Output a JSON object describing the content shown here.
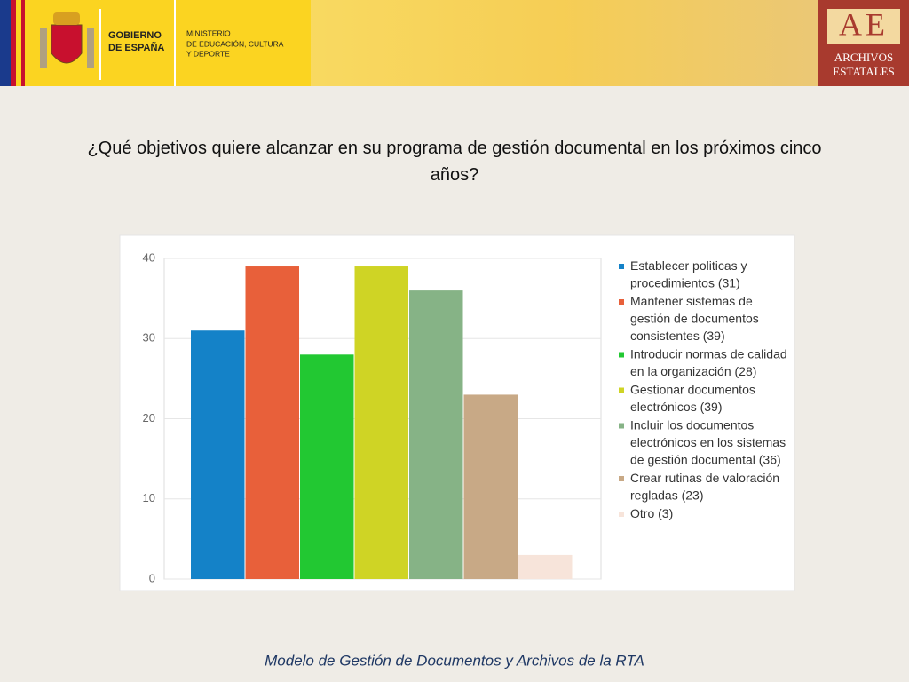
{
  "header": {
    "gobierno": "GOBIERNO",
    "espana": "DE ESPAÑA",
    "ministerio": "MINISTERIO",
    "ministerio2": "DE EDUCACIÓN, CULTURA",
    "ministerio3": "Y DEPORTE",
    "logo": "AE",
    "archivos": "ARCHIVOS",
    "estatales": "ESTATALES"
  },
  "chart_data": {
    "type": "bar",
    "title": "¿Qué objetivos quiere alcanzar en su programa de gestión documental  en los próximos cinco años?",
    "categories": [
      "Establecer politicas y procedimientos (31)",
      "Mantener sistemas de gestión de documentos consistentes (39)",
      "Introducir normas de calidad en la organización (28)",
      "Gestionar documentos electrónicos (39)",
      "Incluir los documentos electrónicos en los sistemas de gestión documental (36)",
      "Crear rutinas de valoración regladas (23)",
      "Otro (3)"
    ],
    "values": [
      31,
      39,
      28,
      39,
      36,
      23,
      3
    ],
    "colors": [
      "#1482c8",
      "#e8603a",
      "#22c832",
      "#cfd425",
      "#86b386",
      "#c8a986",
      "#f7e4da"
    ],
    "ylim": [
      0,
      40
    ],
    "yticks": [
      0,
      10,
      20,
      30,
      40
    ],
    "grid": true
  },
  "footer": "Modelo de Gestión de Documentos y Archivos de la RTA"
}
